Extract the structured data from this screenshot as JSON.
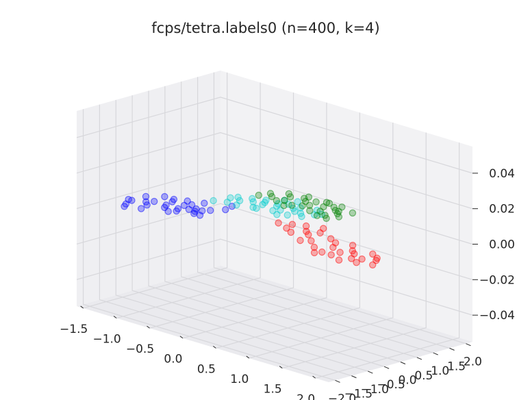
{
  "chart_data": {
    "type": "scatter",
    "projection": "3d",
    "title": "fcps/tetra.labels0 (n=400, k=4)",
    "xlabel": "",
    "ylabel": "",
    "zlabel": "",
    "xlim": [
      -1.6,
      2.2
    ],
    "ylim": [
      -2.2,
      2.2
    ],
    "zlim": [
      -0.055,
      0.055
    ],
    "x_ticks": [
      "−1.5",
      "−1.0",
      "−0.5",
      "0.0",
      "0.5",
      "1.0",
      "1.5",
      "2.0"
    ],
    "y_ticks": [
      "−2.0",
      "−1.5",
      "−1.0",
      "−0.5",
      "0.0",
      "0.5",
      "1.0",
      "1.5",
      "2.0"
    ],
    "z_ticks": [
      "−0.04",
      "−0.02",
      "0.00",
      "0.02",
      "0.04"
    ],
    "grid": true,
    "legend": "none",
    "marker_alpha": 0.3,
    "series": [
      {
        "color": "#0000ff",
        "count": 100,
        "x": [
          -1.46,
          -1.41,
          -1.36,
          -1.31,
          -1.27,
          -1.41,
          -1.22,
          -1.18,
          -1.13,
          -1.27,
          -1.04,
          -1.13,
          -1.08,
          -0.99,
          -0.9,
          -0.99,
          -0.86,
          -0.86,
          -0.81,
          -0.86,
          -0.76,
          -0.81,
          -0.72,
          -0.62,
          -0.67,
          -0.58,
          -0.63,
          -0.49,
          -0.53,
          -0.53
        ],
        "y": [
          -0.9,
          -0.9,
          -1.18,
          -1.33,
          -0.75,
          -0.47,
          -0.6,
          -0.9,
          -1.18,
          -0.18,
          -0.6,
          -0.18,
          -0.33,
          -0.05,
          -0.33,
          -0.75,
          -0.6,
          -0.18,
          0.1,
          -0.9,
          -0.47,
          -0.75,
          -0.33,
          -0.6,
          -0.47,
          -0.18,
          -0.33,
          0.1,
          -0.6,
          0.38
        ]
      },
      {
        "color": "#00cccc",
        "count": 100,
        "x": [
          -0.81,
          -0.76,
          -0.67,
          -0.72,
          -0.62,
          -0.58,
          -0.53,
          -0.49,
          -0.44,
          -0.35,
          -0.39,
          -0.35,
          -0.26,
          -0.3,
          -0.21,
          -0.12,
          -0.17,
          -0.08,
          -0.03,
          0.01,
          0.06,
          0.01,
          0.1,
          0.15,
          0.19,
          0.29,
          0.24,
          0.33,
          -0.3,
          -0.17
        ],
        "y": [
          0.38,
          0.8,
          0.52,
          0.95,
          0.8,
          1.1,
          0.52,
          0.95,
          1.24,
          0.66,
          1.1,
          0.95,
          1.24,
          0.66,
          1.1,
          0.8,
          1.38,
          0.95,
          1.24,
          0.66,
          1.1,
          1.38,
          0.8,
          1.1,
          1.52,
          1.24,
          0.95,
          1.38,
          1.52,
          1.66
        ]
      },
      {
        "color": "#ff0000",
        "count": 100,
        "x": [
          0.24,
          0.38,
          0.43,
          0.52,
          0.57,
          0.66,
          0.71,
          0.8,
          0.85,
          0.76,
          0.94,
          1.03,
          1.13,
          1.17,
          1.27,
          1.31,
          1.36,
          1.45,
          1.5,
          1.45,
          1.59,
          1.69,
          1.73,
          1.78,
          1.87,
          1.92,
          2.01,
          1.83,
          1.64,
          1.27
        ],
        "y": [
          0.24,
          0.38,
          0.1,
          0.52,
          -0.05,
          0.24,
          0.66,
          0.38,
          -0.33,
          0.1,
          -0.18,
          0.24,
          -0.47,
          0.1,
          -0.18,
          -0.6,
          0.24,
          -0.33,
          -0.05,
          -0.6,
          -0.18,
          -0.47,
          0.1,
          -0.33,
          -0.05,
          -0.18,
          -0.47,
          -0.6,
          -0.75,
          -0.75
        ]
      },
      {
        "color": "#008000",
        "count": 100,
        "x": [
          -0.62,
          -0.58,
          -0.49,
          -0.44,
          -0.35,
          -0.3,
          -0.21,
          -0.12,
          -0.12,
          -0.03,
          0.01,
          0.1,
          0.15,
          0.24,
          0.29,
          0.33,
          0.38,
          0.43,
          0.52,
          0.52,
          0.47,
          0.33,
          0.15,
          -0.03,
          -0.17,
          -0.35,
          0.06,
          0.24,
          0.38,
          -0.21
        ],
        "y": [
          1.38,
          1.66,
          1.52,
          1.94,
          1.8,
          1.52,
          2.08,
          1.8,
          1.38,
          1.94,
          1.66,
          2.08,
          1.8,
          1.52,
          2.08,
          1.8,
          1.38,
          1.66,
          1.52,
          1.94,
          1.24,
          1.24,
          1.38,
          1.52,
          1.24,
          1.38,
          2.08,
          1.94,
          1.8,
          1.94
        ]
      }
    ]
  }
}
